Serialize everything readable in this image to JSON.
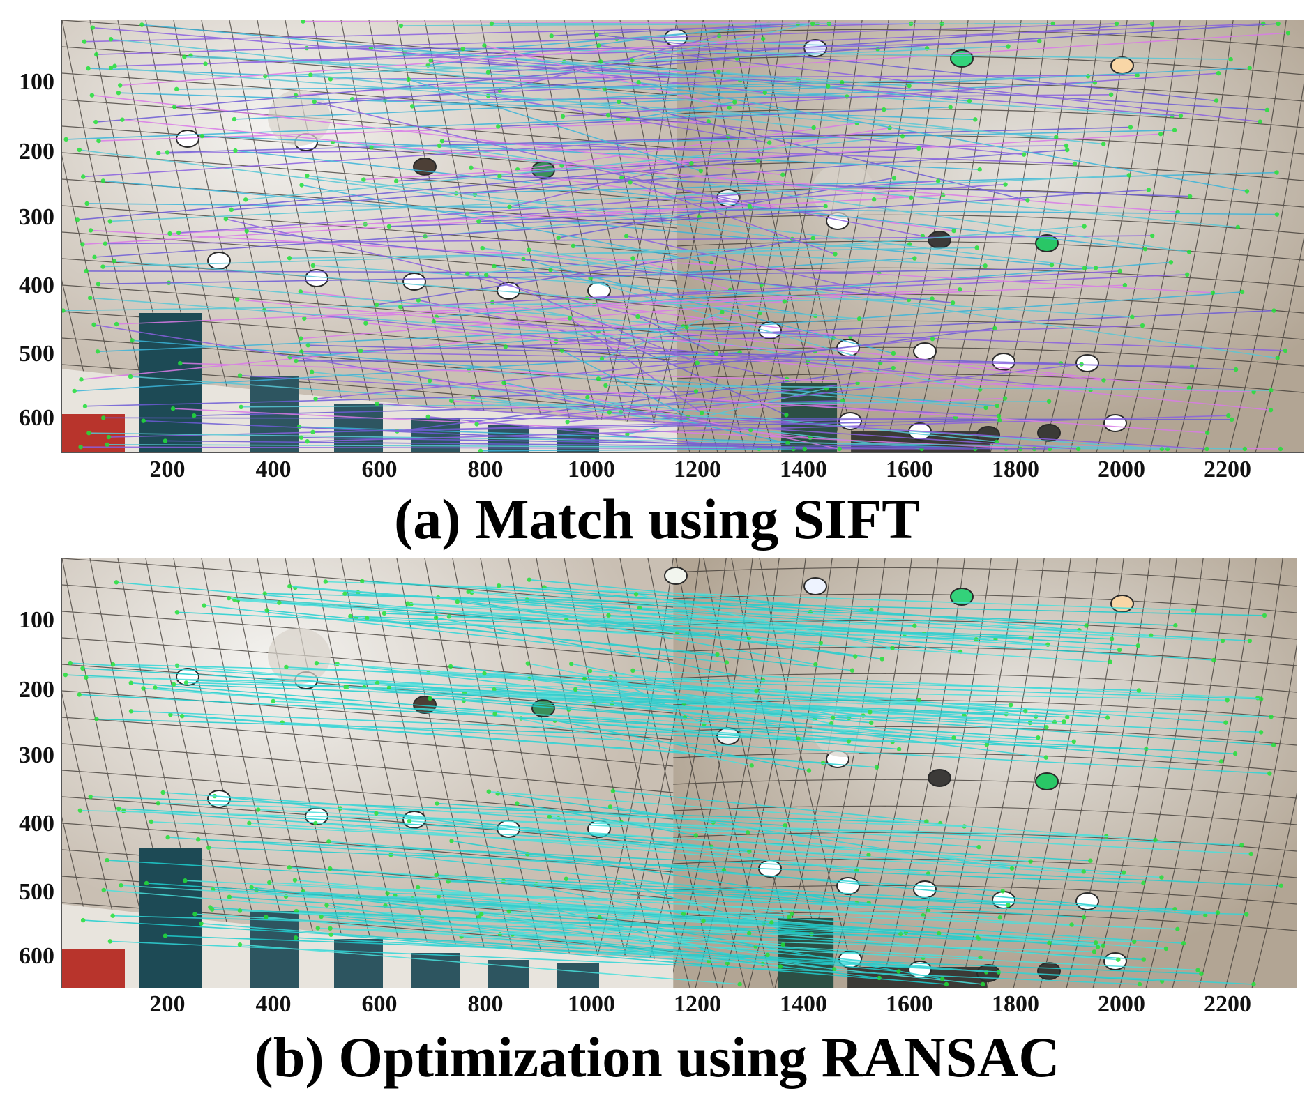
{
  "panels": [
    {
      "id": "a",
      "caption": "(a) Match using SIFT",
      "method": "SIFT",
      "x_ticks": [
        "200",
        "400",
        "600",
        "800",
        "1000",
        "1200",
        "1400",
        "1600",
        "1800",
        "2000",
        "2200"
      ],
      "y_ticks": [
        "100",
        "200",
        "300",
        "400",
        "500",
        "600"
      ],
      "line_colors": [
        "#6d5bd6",
        "#d97be8",
        "#3ab4d9",
        "#8a60e0",
        "#58c7d6"
      ]
    },
    {
      "id": "b",
      "caption": "(b) Optimization using RANSAC",
      "method": "RANSAC",
      "x_ticks": [
        "200",
        "400",
        "600",
        "800",
        "1000",
        "1200",
        "1400",
        "1600",
        "1800",
        "2000",
        "2200"
      ],
      "y_ticks": [
        "100",
        "200",
        "300",
        "400",
        "500",
        "600"
      ],
      "line_colors": [
        "#2fd6d8",
        "#1ecfd0",
        "#49e0dc"
      ]
    }
  ],
  "colors": {
    "ceiling_left": "#c9bfb3",
    "ceiling_right": "#b2a594",
    "grid": "#3a3530",
    "keypoint": "#22e03a",
    "wall": "#e8e4dd"
  }
}
